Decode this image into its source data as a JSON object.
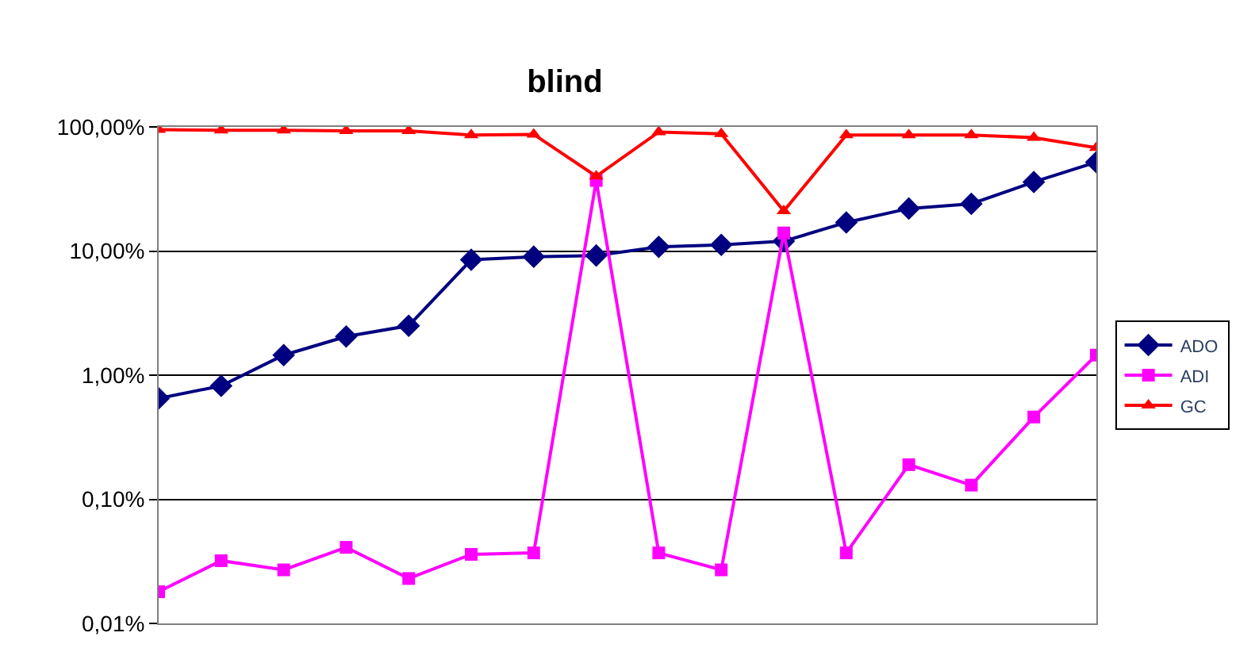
{
  "chart_data": {
    "type": "line",
    "title": "blind",
    "categories": [
      null,
      null,
      null,
      null,
      null,
      null,
      null,
      null,
      null,
      null,
      null,
      null,
      null,
      null,
      null,
      null
    ],
    "series": [
      {
        "name": "ADO",
        "color": "#000080",
        "marker": "diamond",
        "values": [
          0.65,
          0.82,
          1.45,
          2.05,
          2.5,
          8.5,
          9,
          9.2,
          10.8,
          11.2,
          12,
          17,
          22,
          24,
          36,
          52
        ]
      },
      {
        "name": "ADI",
        "color": "#ff00ff",
        "marker": "square",
        "values": [
          0.018,
          0.032,
          0.027,
          0.041,
          0.023,
          0.036,
          0.037,
          37,
          0.037,
          0.027,
          14,
          0.037,
          0.19,
          0.13,
          0.46,
          1.45
        ]
      },
      {
        "name": "GC",
        "color": "#ff0000",
        "marker": "triangle",
        "values": [
          95,
          94,
          94,
          93,
          93,
          86,
          87,
          40,
          91,
          88,
          21,
          86,
          86,
          86,
          82,
          68
        ]
      }
    ],
    "log": "y",
    "ylim": [
      0.01,
      100
    ],
    "yticks": [
      {
        "value": 0.01,
        "label": "0,01%"
      },
      {
        "value": 0.1,
        "label": "0,10%"
      },
      {
        "value": 1,
        "label": "1,00%"
      },
      {
        "value": 10,
        "label": "10,00%"
      },
      {
        "value": 100,
        "label": "100,00%"
      }
    ],
    "grid": "y",
    "legend": "right"
  }
}
